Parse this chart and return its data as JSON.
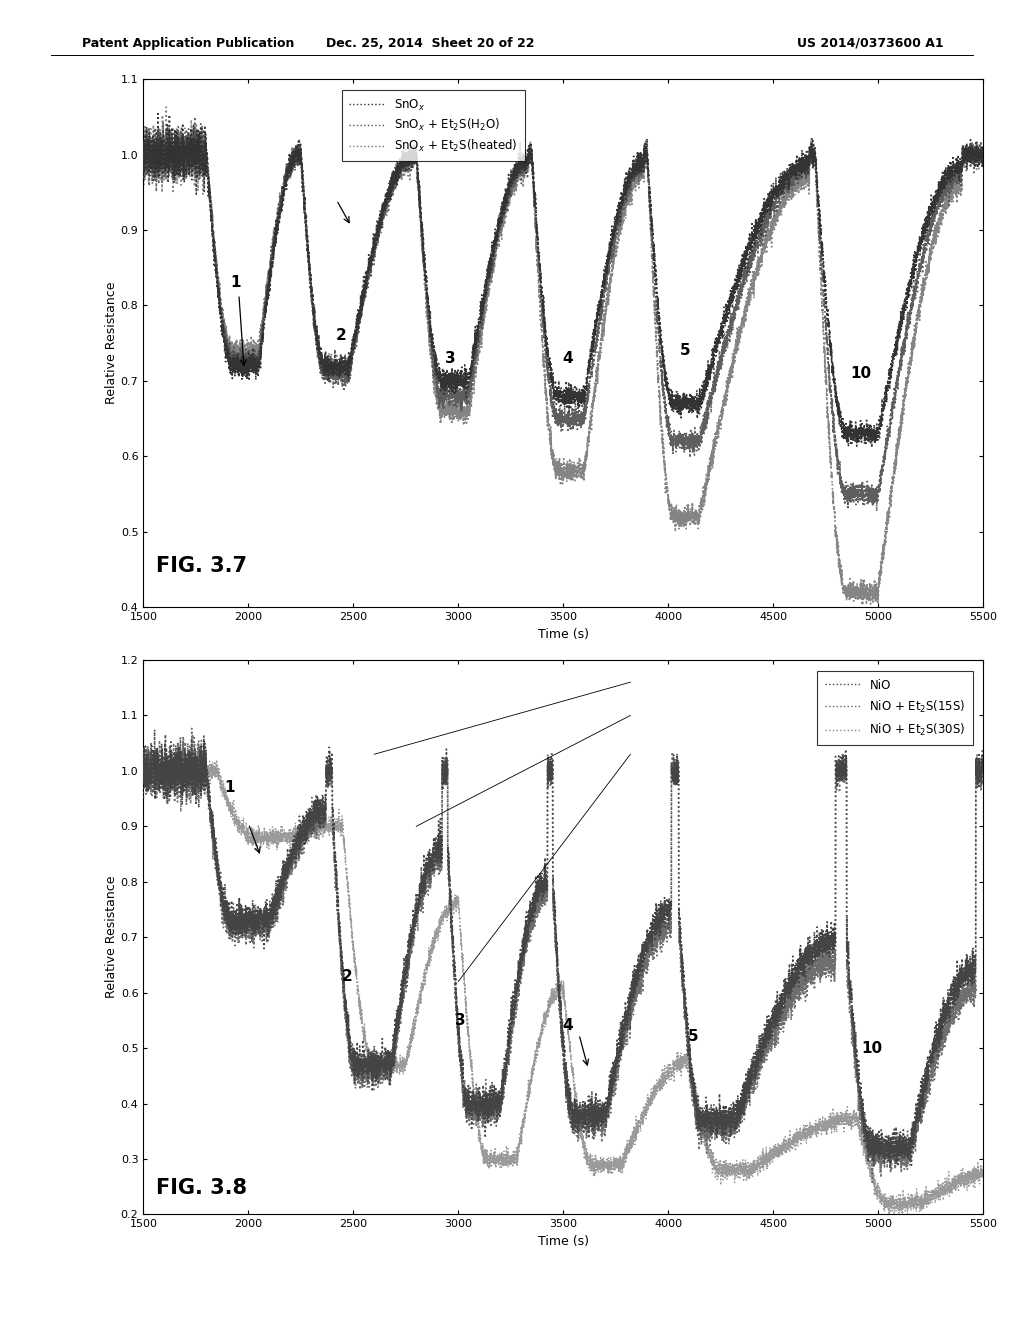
{
  "header_left": "Patent Application Publication",
  "header_mid": "Dec. 25, 2014  Sheet 20 of 22",
  "header_right": "US 2014/0373600 A1",
  "fig1": {
    "title": "FIG. 3.7",
    "xlabel": "Time (s)",
    "ylabel": "Relative Resistance",
    "xlim": [
      1500,
      5500
    ],
    "ylim": [
      0.4,
      1.1
    ],
    "yticks": [
      0.4,
      0.5,
      0.6,
      0.7,
      0.8,
      0.9,
      1.0,
      1.1
    ],
    "xticks": [
      1500,
      2000,
      2500,
      3000,
      3500,
      4000,
      4500,
      5000,
      5500
    ]
  },
  "fig2": {
    "title": "FIG. 3.8",
    "xlabel": "Time (s)",
    "ylabel": "Relative Resistance",
    "xlim": [
      1500,
      5500
    ],
    "ylim": [
      0.2,
      1.2
    ],
    "yticks": [
      0.2,
      0.3,
      0.4,
      0.5,
      0.6,
      0.7,
      0.8,
      0.9,
      1.0,
      1.1,
      1.2
    ],
    "xticks": [
      1500,
      2000,
      2500,
      3000,
      3500,
      4000,
      4500,
      5000,
      5500
    ]
  }
}
